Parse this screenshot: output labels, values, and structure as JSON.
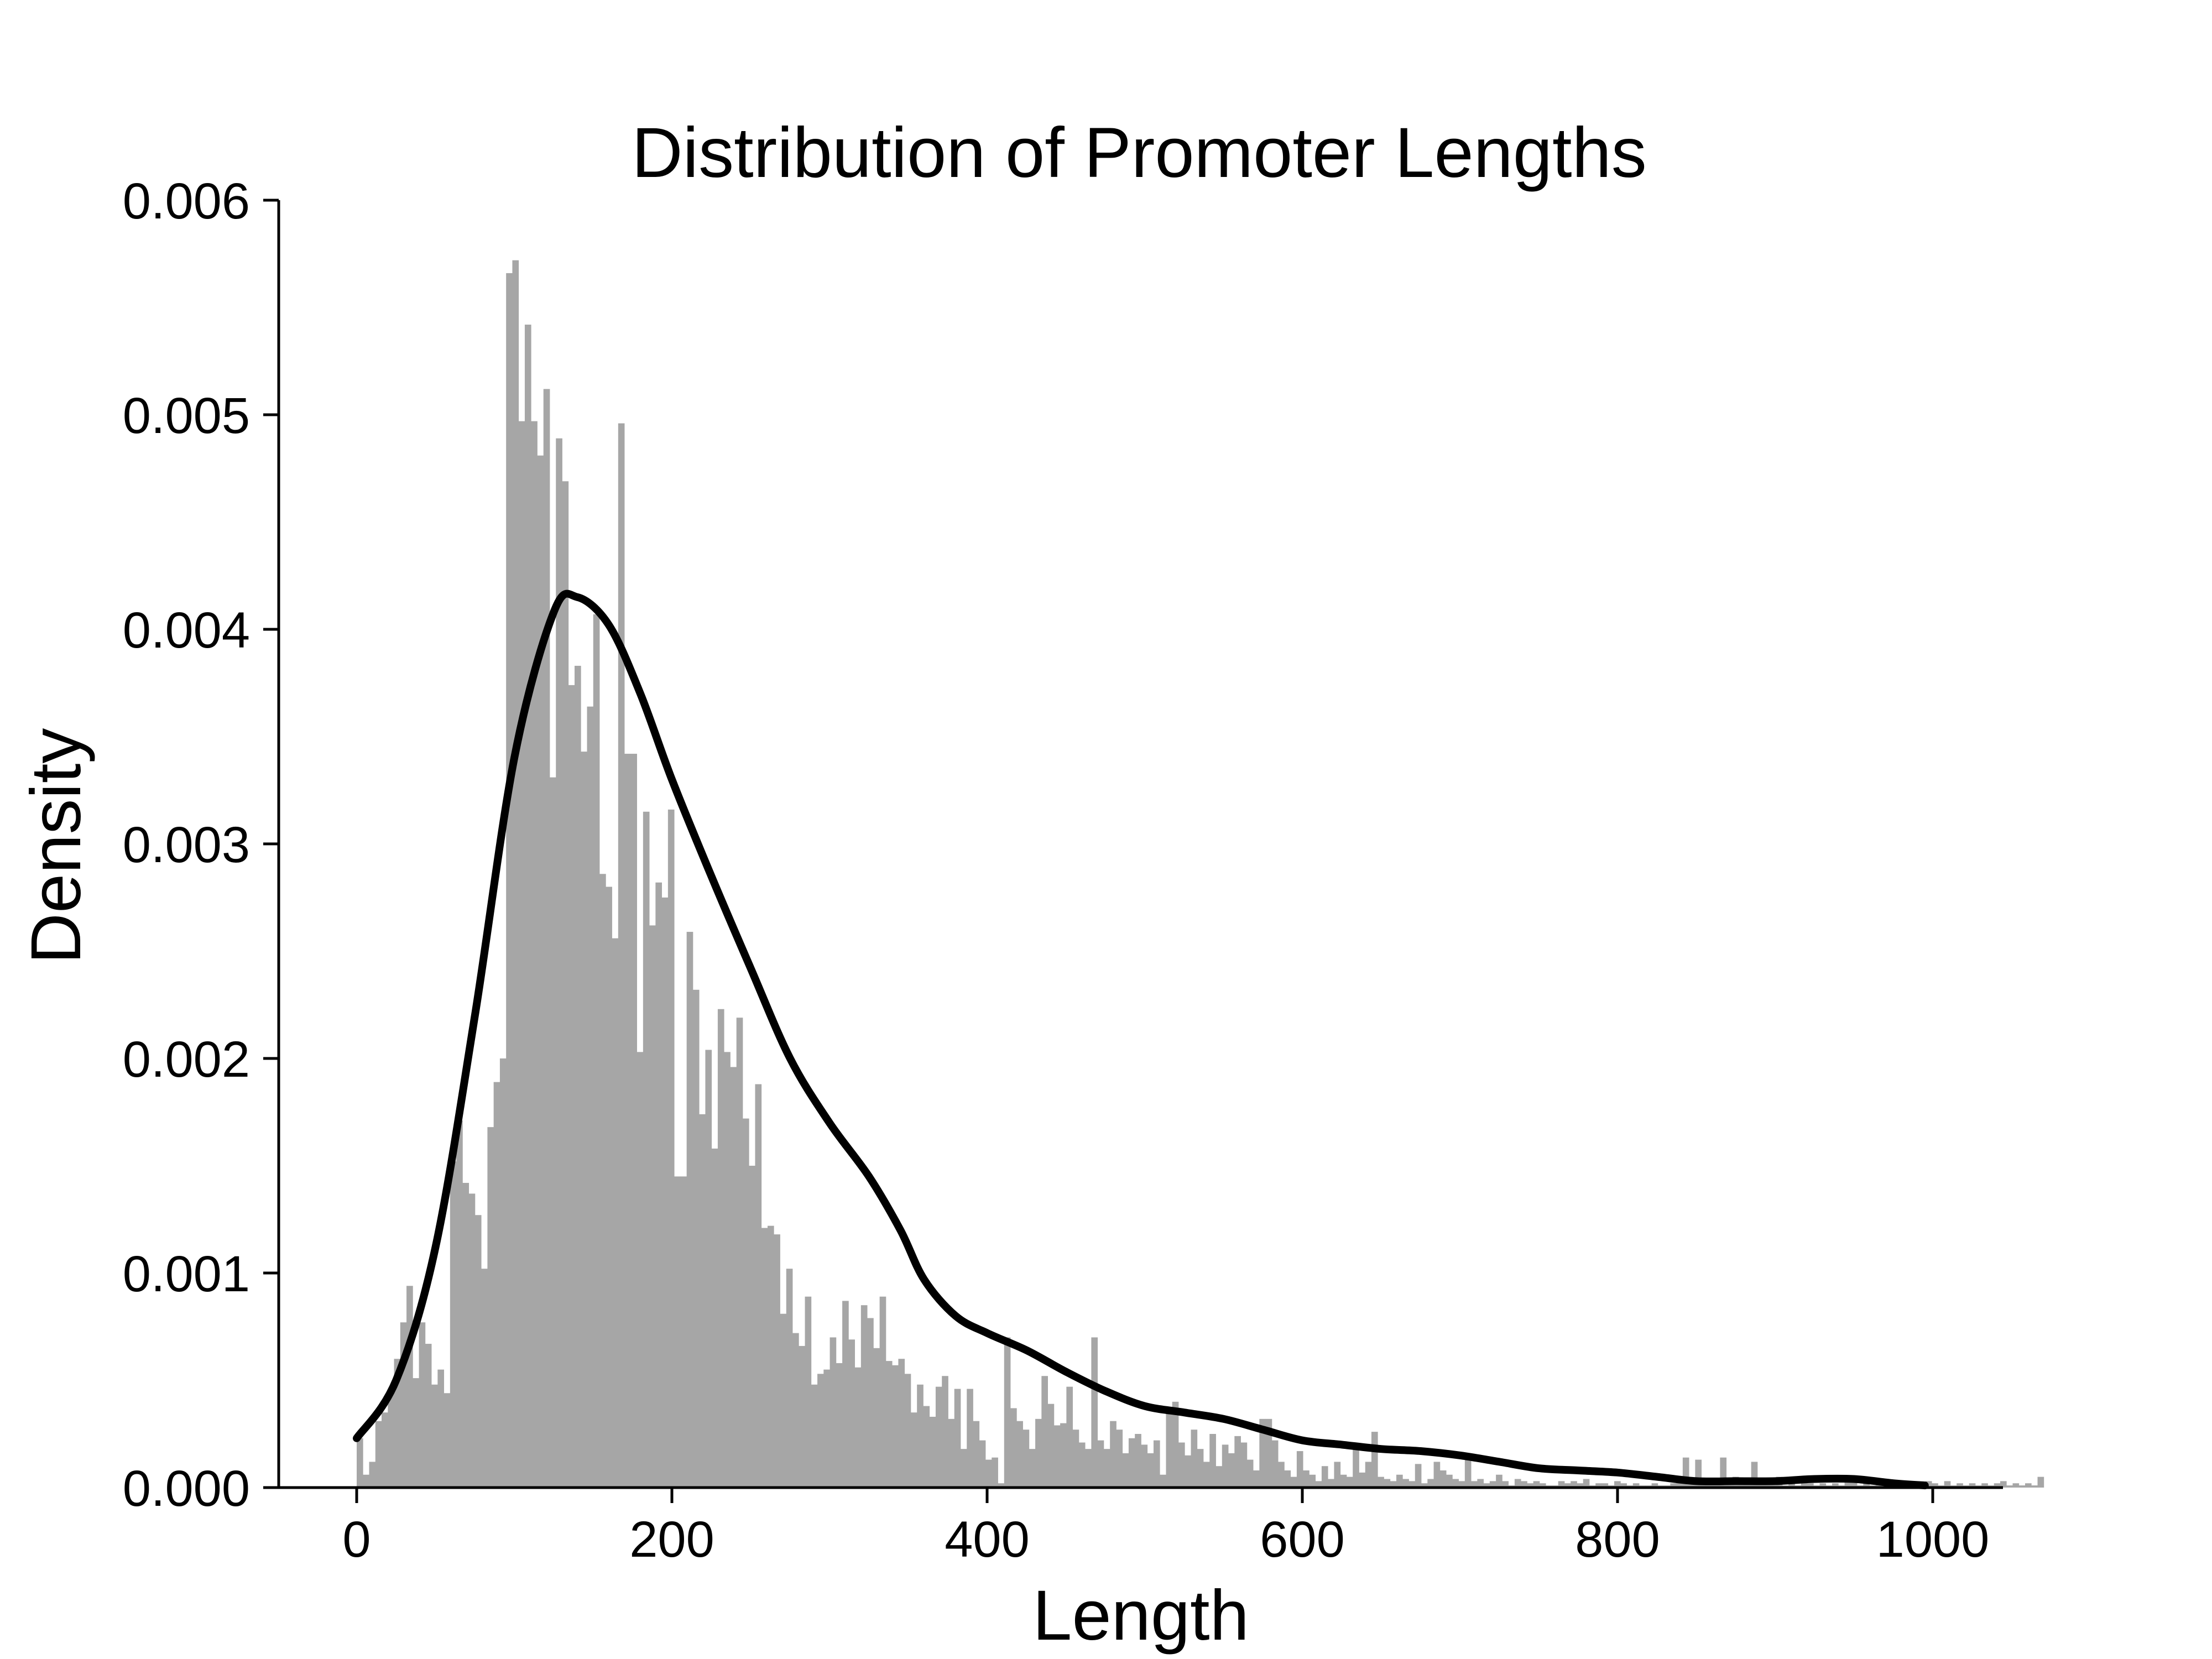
{
  "chart_data": {
    "type": "bar",
    "title": "Distribution of Promoter Lengths",
    "xlabel": "Length",
    "ylabel": "Density",
    "xlim": [
      -50,
      1045
    ],
    "ylim": [
      0,
      0.006
    ],
    "xticks": [
      0,
      200,
      400,
      600,
      800,
      1000
    ],
    "xtick_labels": [
      "0",
      "200",
      "400",
      "600",
      "800",
      "1000"
    ],
    "yticks": [
      0.0,
      0.001,
      0.002,
      0.003,
      0.004,
      0.005,
      0.006
    ],
    "ytick_labels": [
      "0.000",
      "0.001",
      "0.002",
      "0.003",
      "0.004",
      "0.005",
      "0.006"
    ],
    "grid": false,
    "histogram": {
      "bin_width": 3.95,
      "bin_start": 0,
      "color": "#a6a6a6",
      "densities": [
        0.00023,
        6e-05,
        0.00012,
        0.00031,
        0.00035,
        0.00044,
        0.0006,
        0.00077,
        0.00094,
        0.00051,
        0.00077,
        0.00067,
        0.00048,
        0.00055,
        0.00044,
        0.00152,
        0.00171,
        0.00142,
        0.00137,
        0.00127,
        0.00102,
        0.00168,
        0.00189,
        0.002,
        0.00566,
        0.00572,
        0.00497,
        0.00542,
        0.00497,
        0.00481,
        0.00512,
        0.00331,
        0.00489,
        0.00469,
        0.00374,
        0.00383,
        0.00343,
        0.00364,
        0.00407,
        0.00286,
        0.0028,
        0.00256,
        0.00496,
        0.00342,
        0.00342,
        0.00203,
        0.00315,
        0.00262,
        0.00282,
        0.00275,
        0.00316,
        0.00145,
        0.00145,
        0.00259,
        0.00232,
        0.00174,
        0.00204,
        0.00158,
        0.00223,
        0.00203,
        0.00196,
        0.00219,
        0.00172,
        0.0015,
        0.00188,
        0.00121,
        0.00122,
        0.00118,
        0.00081,
        0.00102,
        0.00072,
        0.00066,
        0.00089,
        0.00048,
        0.00053,
        0.00055,
        0.0007,
        0.00058,
        0.00087,
        0.00069,
        0.00056,
        0.00085,
        0.00079,
        0.00065,
        0.00089,
        0.00059,
        0.00057,
        0.0006,
        0.00053,
        0.00035,
        0.00048,
        0.00038,
        0.00033,
        0.00047,
        0.00052,
        0.00032,
        0.00046,
        0.00018,
        0.00046,
        0.00031,
        0.00022,
        0.00013,
        0.00014,
        2e-05,
        0.0007,
        0.00037,
        0.00031,
        0.00027,
        0.00018,
        0.00032,
        0.00052,
        0.00039,
        0.00029,
        0.0003,
        0.00047,
        0.00027,
        0.00021,
        0.00018,
        0.0007,
        0.00022,
        0.00018,
        0.00031,
        0.00027,
        0.00016,
        0.00023,
        0.00025,
        0.0002,
        0.00016,
        0.00022,
        6e-05,
        0.00035,
        0.0004,
        0.00021,
        0.00015,
        0.00027,
        0.00018,
        0.00012,
        0.00025,
        0.0001,
        0.0002,
        0.00016,
        0.00024,
        0.00021,
        0.00013,
        8e-05,
        0.00032,
        0.00032,
        0.00022,
        0.00012,
        8e-05,
        5e-05,
        0.00017,
        8e-05,
        6e-05,
        3e-05,
        0.0001,
        4e-05,
        0.00012,
        6e-05,
        5e-05,
        0.00018,
        7e-05,
        0.00012,
        0.00026,
        5e-05,
        4e-05,
        3e-05,
        6e-05,
        4e-05,
        3e-05,
        0.00011,
        2e-05,
        4e-05,
        0.00012,
        8e-05,
        6e-05,
        4e-05,
        3e-05,
        0.00014,
        3e-05,
        4e-05,
        2e-05,
        3e-05,
        6e-05,
        3e-05,
        1e-05,
        4e-05,
        3e-05,
        2e-05,
        3e-05,
        2e-05,
        1e-05,
        1e-05,
        3e-05,
        2e-05,
        3e-05,
        2e-05,
        4e-05,
        1e-05,
        2e-05,
        2e-05,
        1e-05,
        3e-05,
        2e-05,
        1e-05,
        2e-05,
        1e-05,
        1e-05,
        2e-05,
        1e-05,
        1e-05,
        2e-05,
        3e-05,
        0.00014,
        2e-05,
        0.00013,
        4e-05,
        2e-05,
        3e-05,
        0.00014,
        2e-05,
        5e-05,
        3e-05,
        2e-05,
        0.00012,
        2e-05,
        3e-05,
        2e-05,
        5e-05,
        1e-05,
        2e-05,
        1e-05,
        3e-05,
        2e-05,
        1e-05,
        2e-05,
        1e-05,
        2e-05,
        1e-05,
        3e-05,
        5e-05,
        1e-05,
        2e-05,
        1e-05,
        2e-05,
        1e-05,
        2e-05,
        3e-05,
        1e-05,
        1e-05,
        2e-05,
        1e-05,
        3e-05,
        2e-05,
        1e-05,
        3e-05,
        1e-05,
        2e-05,
        1e-05,
        2e-05,
        1e-05,
        2e-05,
        1e-05,
        2e-05,
        3e-05,
        1e-05,
        2e-05,
        1e-05,
        2e-05,
        1e-05,
        5e-05
      ]
    },
    "kde": {
      "color": "#000000",
      "x": [
        0,
        25,
        50,
        75,
        100,
        125,
        140,
        160,
        180,
        200,
        225,
        250,
        275,
        300,
        325,
        345,
        360,
        380,
        400,
        425,
        450,
        475,
        500,
        525,
        550,
        575,
        600,
        625,
        650,
        675,
        700,
        725,
        750,
        775,
        800,
        825,
        850,
        875,
        900,
        925,
        950,
        975,
        995
      ],
      "y": [
        0.00023,
        0.0005,
        0.00112,
        0.0022,
        0.0034,
        0.00408,
        0.00415,
        0.00402,
        0.0037,
        0.0033,
        0.00285,
        0.00242,
        0.002,
        0.0017,
        0.00145,
        0.0012,
        0.00097,
        0.0008,
        0.00072,
        0.00064,
        0.00054,
        0.00045,
        0.00038,
        0.00035,
        0.00032,
        0.00027,
        0.00022,
        0.0002,
        0.00018,
        0.00017,
        0.00015,
        0.00012,
        9e-05,
        8e-05,
        7e-05,
        5e-05,
        3e-05,
        3e-05,
        3e-05,
        4e-05,
        4e-05,
        2e-05,
        1e-05
      ]
    }
  }
}
